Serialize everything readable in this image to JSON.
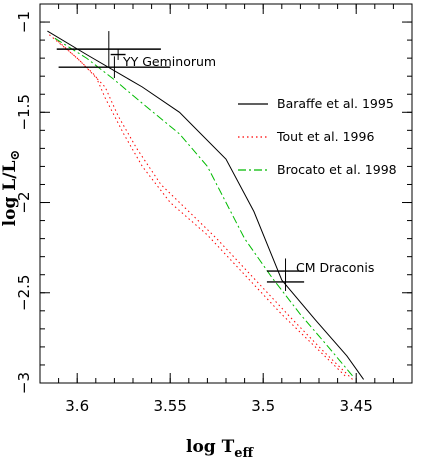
{
  "chart_data": {
    "type": "line",
    "title": "",
    "xlabel": "log T",
    "xlabel_sub": "eff",
    "ylabel": "log L/L",
    "ylabel_sub": "⊙",
    "xlim": [
      3.62,
      3.42
    ],
    "ylim": [
      -3.0,
      -0.9
    ],
    "x_reversed": true,
    "x_ticks": [
      3.6,
      3.55,
      3.5,
      3.45
    ],
    "x_tick_labels": [
      "3.6",
      "3.55",
      "3.5",
      "3.45"
    ],
    "y_ticks": [
      -1.0,
      -1.5,
      -2.0,
      -2.5,
      -3.0
    ],
    "y_tick_labels": [
      "−1",
      "−1.5",
      "−2",
      "−2.5",
      "−3"
    ],
    "grid": false,
    "legend_position": "right",
    "series": [
      {
        "name": "Baraffe et al. 1995",
        "color": "#000000",
        "dash": "solid",
        "points": [
          [
            3.616,
            -1.05
          ],
          [
            3.595,
            -1.18
          ],
          [
            3.575,
            -1.3
          ],
          [
            3.565,
            -1.36
          ],
          [
            3.545,
            -1.5
          ],
          [
            3.52,
            -1.76
          ],
          [
            3.505,
            -2.05
          ],
          [
            3.49,
            -2.43
          ],
          [
            3.472,
            -2.65
          ],
          [
            3.455,
            -2.85
          ],
          [
            3.446,
            -2.98
          ]
        ]
      },
      {
        "name": "Tout et al. 1996",
        "color": "#ff0000",
        "dash": "dotted",
        "points": [
          [
            3.615,
            -1.07
          ],
          [
            3.6,
            -1.2
          ],
          [
            3.59,
            -1.3
          ],
          [
            3.585,
            -1.42
          ],
          [
            3.575,
            -1.62
          ],
          [
            3.565,
            -1.8
          ],
          [
            3.55,
            -2.0
          ],
          [
            3.53,
            -2.18
          ],
          [
            3.51,
            -2.4
          ],
          [
            3.49,
            -2.62
          ],
          [
            3.472,
            -2.8
          ],
          [
            3.455,
            -2.97
          ]
        ]
      },
      {
        "name": "Tout et al. 1996",
        "color": "#ff0000",
        "dash": "dotted",
        "points": [
          [
            3.612,
            -1.09
          ],
          [
            3.598,
            -1.22
          ],
          [
            3.585,
            -1.36
          ],
          [
            3.578,
            -1.52
          ],
          [
            3.568,
            -1.7
          ],
          [
            3.555,
            -1.9
          ],
          [
            3.54,
            -2.05
          ],
          [
            3.525,
            -2.2
          ],
          [
            3.505,
            -2.42
          ],
          [
            3.485,
            -2.64
          ],
          [
            3.468,
            -2.82
          ],
          [
            3.452,
            -2.98
          ]
        ]
      },
      {
        "name": "Brocato et al. 1998",
        "color": "#00bb00",
        "dash": "dashdot",
        "points": [
          [
            3.612,
            -1.09
          ],
          [
            3.595,
            -1.2
          ],
          [
            3.58,
            -1.32
          ],
          [
            3.565,
            -1.45
          ],
          [
            3.545,
            -1.62
          ],
          [
            3.53,
            -1.8
          ],
          [
            3.52,
            -2.0
          ],
          [
            3.51,
            -2.2
          ],
          [
            3.495,
            -2.42
          ],
          [
            3.48,
            -2.62
          ],
          [
            3.465,
            -2.8
          ],
          [
            3.452,
            -2.96
          ]
        ]
      }
    ],
    "legend": [
      {
        "label": "Baraffe et al. 1995",
        "color": "#000000",
        "dash": "solid"
      },
      {
        "label": "Tout et al. 1996",
        "color": "#ff0000",
        "dash": "dotted"
      },
      {
        "label": "Brocato et al. 1998",
        "color": "#00bb00",
        "dash": "dashdot"
      }
    ],
    "annotations": [
      {
        "label": "YY Geminorum",
        "stars": [
          {
            "x": 3.583,
            "y": -1.15,
            "xerr": 0.028,
            "yerr": 0.1
          },
          {
            "x": 3.58,
            "y": -1.25,
            "xerr": 0.03,
            "yerr": 0.06
          },
          {
            "x": 3.578,
            "y": -1.18,
            "xerr": 0.004,
            "yerr": 0.03
          }
        ]
      },
      {
        "label": "CM Draconis",
        "stars": [
          {
            "x": 3.488,
            "y": -2.38,
            "xerr": 0.01,
            "yerr": 0.07
          },
          {
            "x": 3.488,
            "y": -2.44,
            "xerr": 0.01,
            "yerr": 0.05
          }
        ]
      }
    ]
  }
}
